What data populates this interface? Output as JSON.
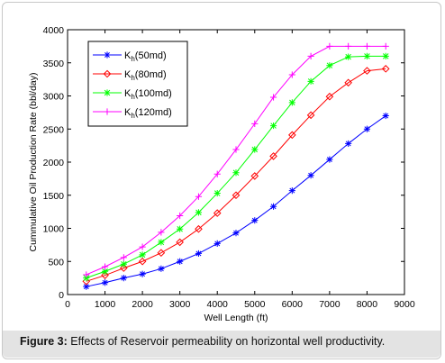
{
  "caption": {
    "lead": "Figure 3:",
    "text": " Effects of Reservoir permeability on horizontal well productivity."
  },
  "chart_data": {
    "type": "line",
    "xlabel": "Well Length (ft)",
    "ylabel": "Cummulative Oil Production Rate (bbl/day)",
    "xlim": [
      0,
      9000
    ],
    "ylim": [
      0,
      4000
    ],
    "xticks": [
      0,
      1000,
      2000,
      3000,
      4000,
      5000,
      6000,
      7000,
      8000,
      9000
    ],
    "yticks": [
      0,
      500,
      1000,
      1500,
      2000,
      2500,
      3000,
      3500,
      4000
    ],
    "grid": false,
    "legend_position": "top-left",
    "x": [
      500,
      1000,
      1500,
      2000,
      2500,
      3000,
      3500,
      4000,
      4500,
      5000,
      5500,
      6000,
      6500,
      7000,
      7500,
      8000,
      8500
    ],
    "series": [
      {
        "name_main": "K",
        "name_sub": "h",
        "name_rest": "(50md)",
        "marker": "star",
        "color": "#0000ff",
        "values": [
          120,
          180,
          250,
          310,
          390,
          500,
          620,
          770,
          930,
          1120,
          1330,
          1570,
          1800,
          2040,
          2280,
          2500,
          2700
        ]
      },
      {
        "name_main": "K",
        "name_sub": "h",
        "name_rest": "(80md)",
        "marker": "diamond",
        "color": "#ff0000",
        "values": [
          200,
          290,
          400,
          500,
          630,
          790,
          990,
          1230,
          1500,
          1790,
          2090,
          2410,
          2710,
          2990,
          3200,
          3380,
          3410
        ]
      },
      {
        "name_main": "K",
        "name_sub": "h",
        "name_rest": "(100md)",
        "marker": "asterisk",
        "color": "#00ff00",
        "values": [
          250,
          350,
          460,
          600,
          790,
          990,
          1240,
          1530,
          1840,
          2190,
          2550,
          2900,
          3220,
          3460,
          3590,
          3600,
          3600
        ]
      },
      {
        "name_main": "K",
        "name_sub": "h",
        "name_rest": "(120md)",
        "marker": "plus",
        "color": "#ff00ff",
        "values": [
          300,
          420,
          560,
          720,
          940,
          1190,
          1480,
          1820,
          2190,
          2580,
          2980,
          3320,
          3600,
          3750,
          3750,
          3750,
          3750
        ]
      }
    ]
  }
}
